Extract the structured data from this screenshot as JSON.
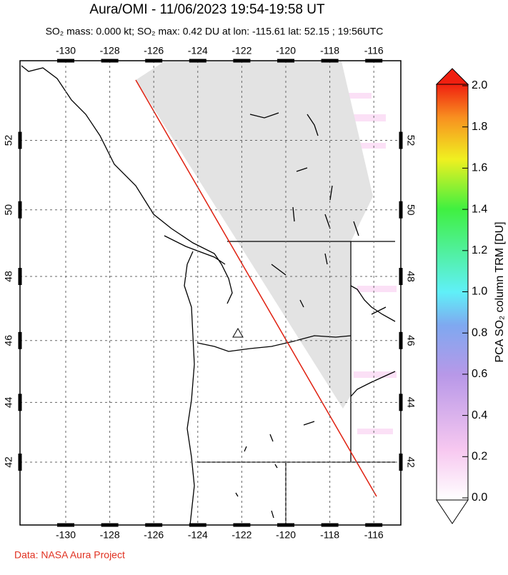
{
  "title": "Aura/OMI - 11/06/2023 19:54-19:58 UT",
  "subtitle": "SO₂ mass: 0.000 kt; SO₂ max: 0.42 DU at lon: -115.61 lat: 52.15 ; 19:56UTC",
  "lon_ticks": [
    -130,
    -128,
    -126,
    -124,
    -122,
    -120,
    -118,
    -116
  ],
  "lat_ticks": [
    42,
    44,
    46,
    48,
    50,
    52
  ],
  "colorbar": {
    "label": "PCA SO₂ column TRM [DU]",
    "range": [
      0,
      2
    ],
    "ticks": [
      {
        "value": 0,
        "label": "0.0"
      },
      {
        "value": 0.2,
        "label": "0.2"
      },
      {
        "value": 0.4,
        "label": "0.4"
      },
      {
        "value": 0.6,
        "label": "0.6"
      },
      {
        "value": 0.8,
        "label": "0.8"
      },
      {
        "value": 1,
        "label": "1.0"
      },
      {
        "value": 1.2,
        "label": "1.2"
      },
      {
        "value": 1.4,
        "label": "1.4"
      },
      {
        "value": 1.6,
        "label": "1.6"
      },
      {
        "value": 1.8,
        "label": "1.8"
      },
      {
        "value": 2,
        "label": "2.0"
      }
    ]
  },
  "credit": "Data: NASA Aura Project"
}
